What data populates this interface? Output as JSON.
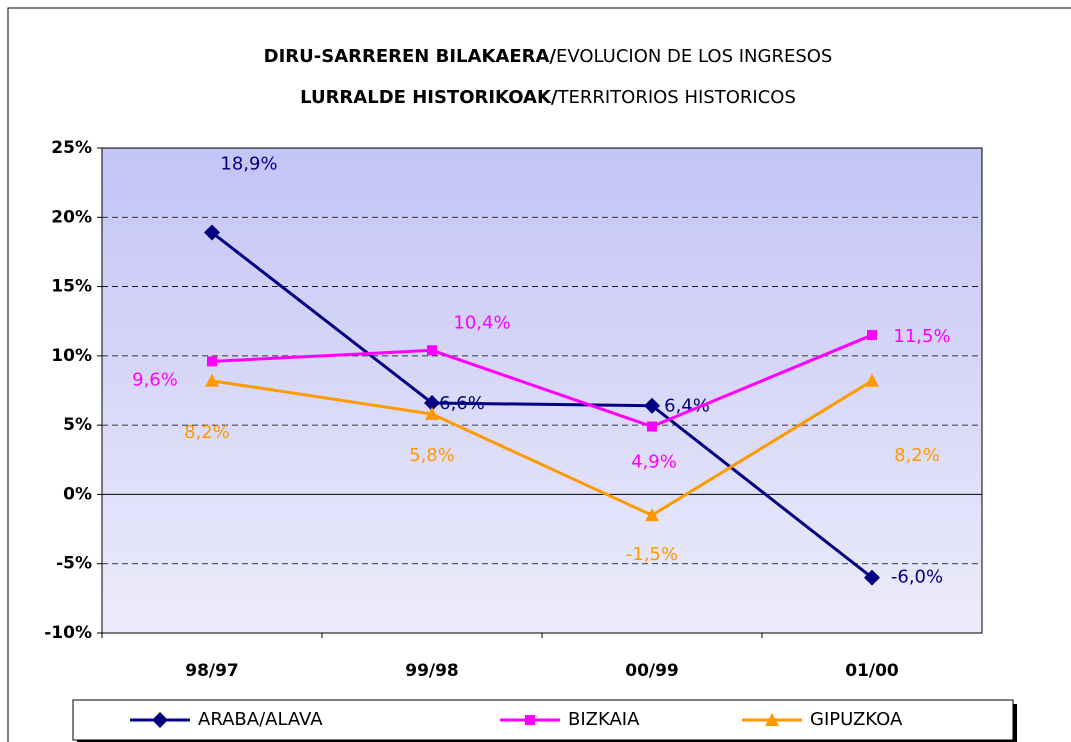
{
  "chart_data": {
    "type": "line",
    "title": [
      [
        "DIRU-SARREREN BILAKAERA/",
        "EVOLUCION DE LOS INGRESOS"
      ],
      [
        "LURRALDE HISTORIKOAK/",
        "TERRITORIOS HISTORICOS"
      ]
    ],
    "categories": [
      "98/97",
      "99/98",
      "00/99",
      "01/00"
    ],
    "ylim": [
      -10,
      25
    ],
    "yticks": [
      {
        "value": -10,
        "label": "-10%"
      },
      {
        "value": -5,
        "label": "-5%"
      },
      {
        "value": 0,
        "label": "0%"
      },
      {
        "value": 5,
        "label": "5%"
      },
      {
        "value": 10,
        "label": "10%"
      },
      {
        "value": 15,
        "label": "15%"
      },
      {
        "value": 20,
        "label": "20%"
      },
      {
        "value": 25,
        "label": "25%"
      }
    ],
    "grid": true,
    "legend": "bottom",
    "series": [
      {
        "name": "ARABA/ALAVA",
        "color": "#000080",
        "marker": "diamond",
        "values": [
          18.9,
          6.6,
          6.4,
          -6.0
        ],
        "value_labels": [
          "18,9%",
          "6,6%",
          "6,4%",
          "-6,0%"
        ]
      },
      {
        "name": "BIZKAIA",
        "color": "#ff00ff",
        "marker": "square",
        "values": [
          9.6,
          10.4,
          4.9,
          11.5
        ],
        "value_labels": [
          "9,6%",
          "10,4%",
          "4,9%",
          "11,5%"
        ]
      },
      {
        "name": "GIPUZKOA",
        "color": "#ff9900",
        "marker": "triangle",
        "values": [
          8.2,
          5.8,
          -1.5,
          8.2
        ],
        "value_labels": [
          "8,2%",
          "5,8%",
          "-1,5%",
          "8,2%"
        ]
      }
    ]
  }
}
